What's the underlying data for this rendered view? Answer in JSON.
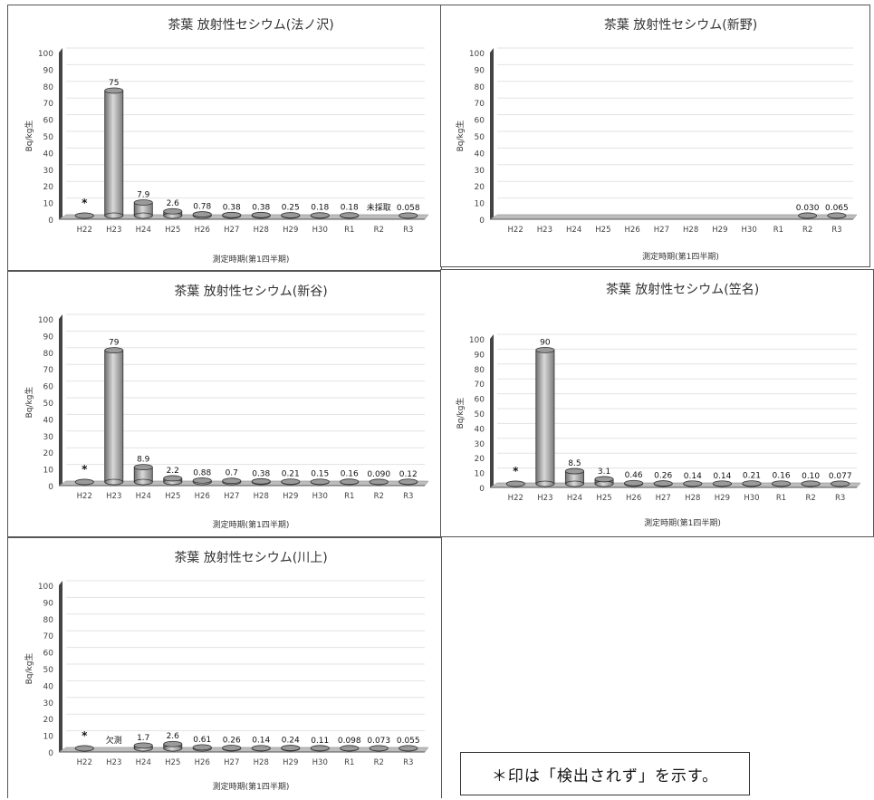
{
  "categories": [
    "H22",
    "H23",
    "H24",
    "H25",
    "H26",
    "H27",
    "H28",
    "H29",
    "H30",
    "R1",
    "R2",
    "R3"
  ],
  "note": "＊印は「検出されず」を示す。",
  "chart_data": [
    {
      "type": "bar",
      "title": "茶葉 放射性セシウム(法ノ沢)",
      "xlabel": "測定時期(第1四半期)",
      "ylabel": "Bq/kg生",
      "ylim": [
        0,
        100
      ],
      "yticks": [
        0,
        10,
        20,
        30,
        40,
        50,
        60,
        70,
        80,
        90,
        100
      ],
      "grid": true,
      "categories": [
        "H22",
        "H23",
        "H24",
        "H25",
        "H26",
        "H27",
        "H28",
        "H29",
        "H30",
        "R1",
        "R2",
        "R3"
      ],
      "values": [
        0,
        75,
        7.9,
        2.6,
        0.78,
        0.38,
        0.38,
        0.25,
        0.18,
        0.18,
        null,
        0.058
      ],
      "labels": [
        "*",
        "75",
        "7.9",
        "2.6",
        "0.78",
        "0.38",
        "0.38",
        "0.25",
        "0.18",
        "0.18",
        "未採取",
        "0.058"
      ]
    },
    {
      "type": "bar",
      "title": "茶葉 放射性セシウム(新野)",
      "xlabel": "測定時期(第1四半期)",
      "ylabel": "Bq/kg生",
      "ylim": [
        0,
        100
      ],
      "yticks": [
        0,
        10,
        20,
        30,
        40,
        50,
        60,
        70,
        80,
        90,
        100
      ],
      "grid": true,
      "categories": [
        "H22",
        "H23",
        "H24",
        "H25",
        "H26",
        "H27",
        "H28",
        "H29",
        "H30",
        "R1",
        "R2",
        "R3"
      ],
      "values": [
        null,
        null,
        null,
        null,
        null,
        null,
        null,
        null,
        null,
        null,
        0.03,
        0.065
      ],
      "labels": [
        "",
        "",
        "",
        "",
        "",
        "",
        "",
        "",
        "",
        "",
        "0.030",
        "0.065"
      ]
    },
    {
      "type": "bar",
      "title": "茶葉 放射性セシウム(新谷)",
      "xlabel": "測定時期(第1四半期)",
      "ylabel": "Bq/kg生",
      "ylim": [
        0,
        100
      ],
      "yticks": [
        0,
        10,
        20,
        30,
        40,
        50,
        60,
        70,
        80,
        90,
        100
      ],
      "grid": true,
      "categories": [
        "H22",
        "H23",
        "H24",
        "H25",
        "H26",
        "H27",
        "H28",
        "H29",
        "H30",
        "R1",
        "R2",
        "R3"
      ],
      "values": [
        0,
        79,
        8.9,
        2.2,
        0.88,
        0.7,
        0.38,
        0.21,
        0.15,
        0.16,
        0.09,
        0.12
      ],
      "labels": [
        "*",
        "79",
        "8.9",
        "2.2",
        "0.88",
        "0.7",
        "0.38",
        "0.21",
        "0.15",
        "0.16",
        "0.090",
        "0.12"
      ]
    },
    {
      "type": "bar",
      "title": "茶葉 放射性セシウム(笠名)",
      "xlabel": "測定時期(第1四半期)",
      "ylabel": "Bq/kg生",
      "ylim": [
        0,
        100
      ],
      "yticks": [
        0,
        10,
        20,
        30,
        40,
        50,
        60,
        70,
        80,
        90,
        100
      ],
      "grid": true,
      "categories": [
        "H22",
        "H23",
        "H24",
        "H25",
        "H26",
        "H27",
        "H28",
        "H29",
        "H30",
        "R1",
        "R2",
        "R3"
      ],
      "values": [
        0,
        90,
        8.5,
        3.1,
        0.46,
        0.26,
        0.14,
        0.14,
        0.21,
        0.16,
        0.1,
        0.077
      ],
      "labels": [
        "*",
        "90",
        "8.5",
        "3.1",
        "0.46",
        "0.26",
        "0.14",
        "0.14",
        "0.21",
        "0.16",
        "0.10",
        "0.077"
      ]
    },
    {
      "type": "bar",
      "title": "茶葉 放射性セシウム(川上)",
      "xlabel": "測定時期(第1四半期)",
      "ylabel": "Bq/kg生",
      "ylim": [
        0,
        100
      ],
      "yticks": [
        0,
        10,
        20,
        30,
        40,
        50,
        60,
        70,
        80,
        90,
        100
      ],
      "grid": true,
      "categories": [
        "H22",
        "H23",
        "H24",
        "H25",
        "H26",
        "H27",
        "H28",
        "H29",
        "H30",
        "R1",
        "R2",
        "R3"
      ],
      "values": [
        0,
        null,
        1.7,
        2.6,
        0.61,
        0.26,
        0.14,
        0.24,
        0.11,
        0.098,
        0.073,
        0.055
      ],
      "labels": [
        "*",
        "欠測",
        "1.7",
        "2.6",
        "0.61",
        "0.26",
        "0.14",
        "0.24",
        "0.11",
        "0.098",
        "0.073",
        "0.055"
      ]
    }
  ]
}
